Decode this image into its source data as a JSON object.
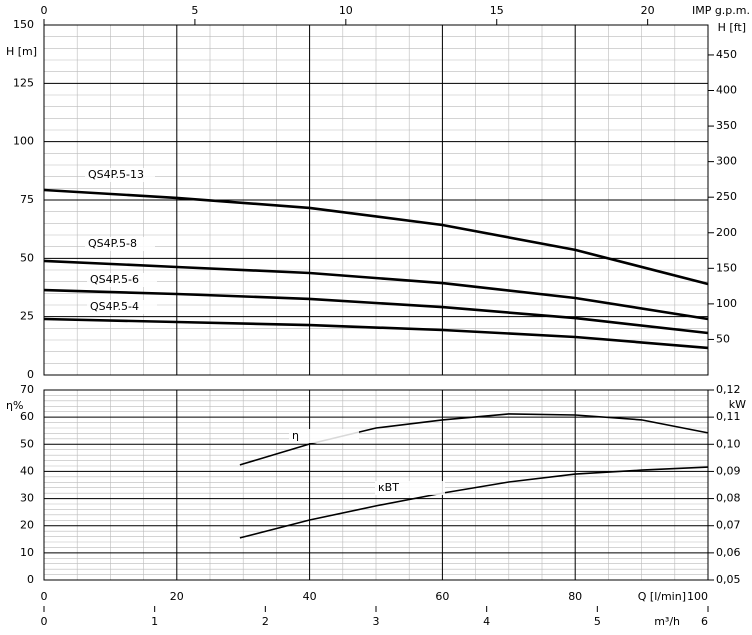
{
  "chart_data": [
    {
      "type": "line",
      "y_label": "H [m]",
      "y2_label": "H [ft]",
      "x2_label": "IMP g.p.m.",
      "x": [
        0,
        20,
        40,
        60,
        80,
        100
      ],
      "xlim": [
        0,
        100
      ],
      "xticks": [
        0,
        20,
        40,
        60,
        80,
        100
      ],
      "ylim": [
        0,
        150
      ],
      "yticks": [
        0,
        25,
        50,
        75,
        100,
        125,
        150
      ],
      "y2lim": [
        0,
        492.1
      ],
      "y2ticks": [
        50,
        100,
        150,
        200,
        250,
        300,
        350,
        400,
        450
      ],
      "x2lim": [
        0,
        22
      ],
      "x2ticks": [
        0,
        5,
        10,
        15,
        20
      ],
      "series": [
        {
          "name": "QS4P.5-13",
          "color": "#000000",
          "values": [
            79.3,
            75.9,
            71.6,
            64.3,
            53.6,
            39
          ]
        },
        {
          "name": "QS4P.5-8",
          "color": "#000000",
          "values": [
            48.9,
            46.3,
            43.7,
            39.4,
            33,
            24
          ]
        },
        {
          "name": "QS4P.5-6",
          "color": "#000000",
          "values": [
            36.4,
            34.7,
            32.6,
            29.1,
            24.4,
            18
          ]
        },
        {
          "name": "QS4P.5-4",
          "color": "#000000",
          "values": [
            24,
            22.7,
            21.4,
            19.3,
            16.3,
            11.6
          ]
        }
      ]
    },
    {
      "type": "line",
      "y_label": "η%",
      "y2_label": "kW",
      "x_label": "Q [l/min]",
      "x3_label": "m³/h",
      "x": [
        29.5,
        40,
        50,
        60,
        70,
        80,
        90,
        100
      ],
      "xlim": [
        0,
        100
      ],
      "xticks": [
        0,
        20,
        40,
        60,
        80,
        100
      ],
      "x3lim": [
        0,
        6
      ],
      "x3ticks": [
        0,
        1,
        2,
        3,
        4,
        5,
        6
      ],
      "ylim": [
        0,
        70
      ],
      "yticks": [
        0,
        10,
        20,
        30,
        40,
        50,
        60,
        70
      ],
      "y2lim": [
        0.05,
        0.12
      ],
      "y2ticks": [
        {
          "value": 0.05,
          "label": "0,05"
        },
        {
          "value": 0.06,
          "label": "0,06"
        },
        {
          "value": 0.07,
          "label": "0,07"
        },
        {
          "value": 0.08,
          "label": "0,08"
        },
        {
          "value": 0.09,
          "label": "0,09"
        },
        {
          "value": 0.1,
          "label": "0,10"
        },
        {
          "value": 0.11,
          "label": "0,11"
        },
        {
          "value": 0.12,
          "label": "0,12"
        }
      ],
      "series": [
        {
          "name": "η",
          "color": "#000000",
          "values": [
            42.4,
            50.1,
            56,
            59,
            61.2,
            60.8,
            59,
            54.2
          ]
        },
        {
          "name": "кВТ",
          "color": "#000000",
          "axis": "y2",
          "values": [
            0.0655,
            0.0721,
            0.0773,
            0.082,
            0.0861,
            0.089,
            0.0905,
            0.0916
          ]
        }
      ]
    }
  ]
}
